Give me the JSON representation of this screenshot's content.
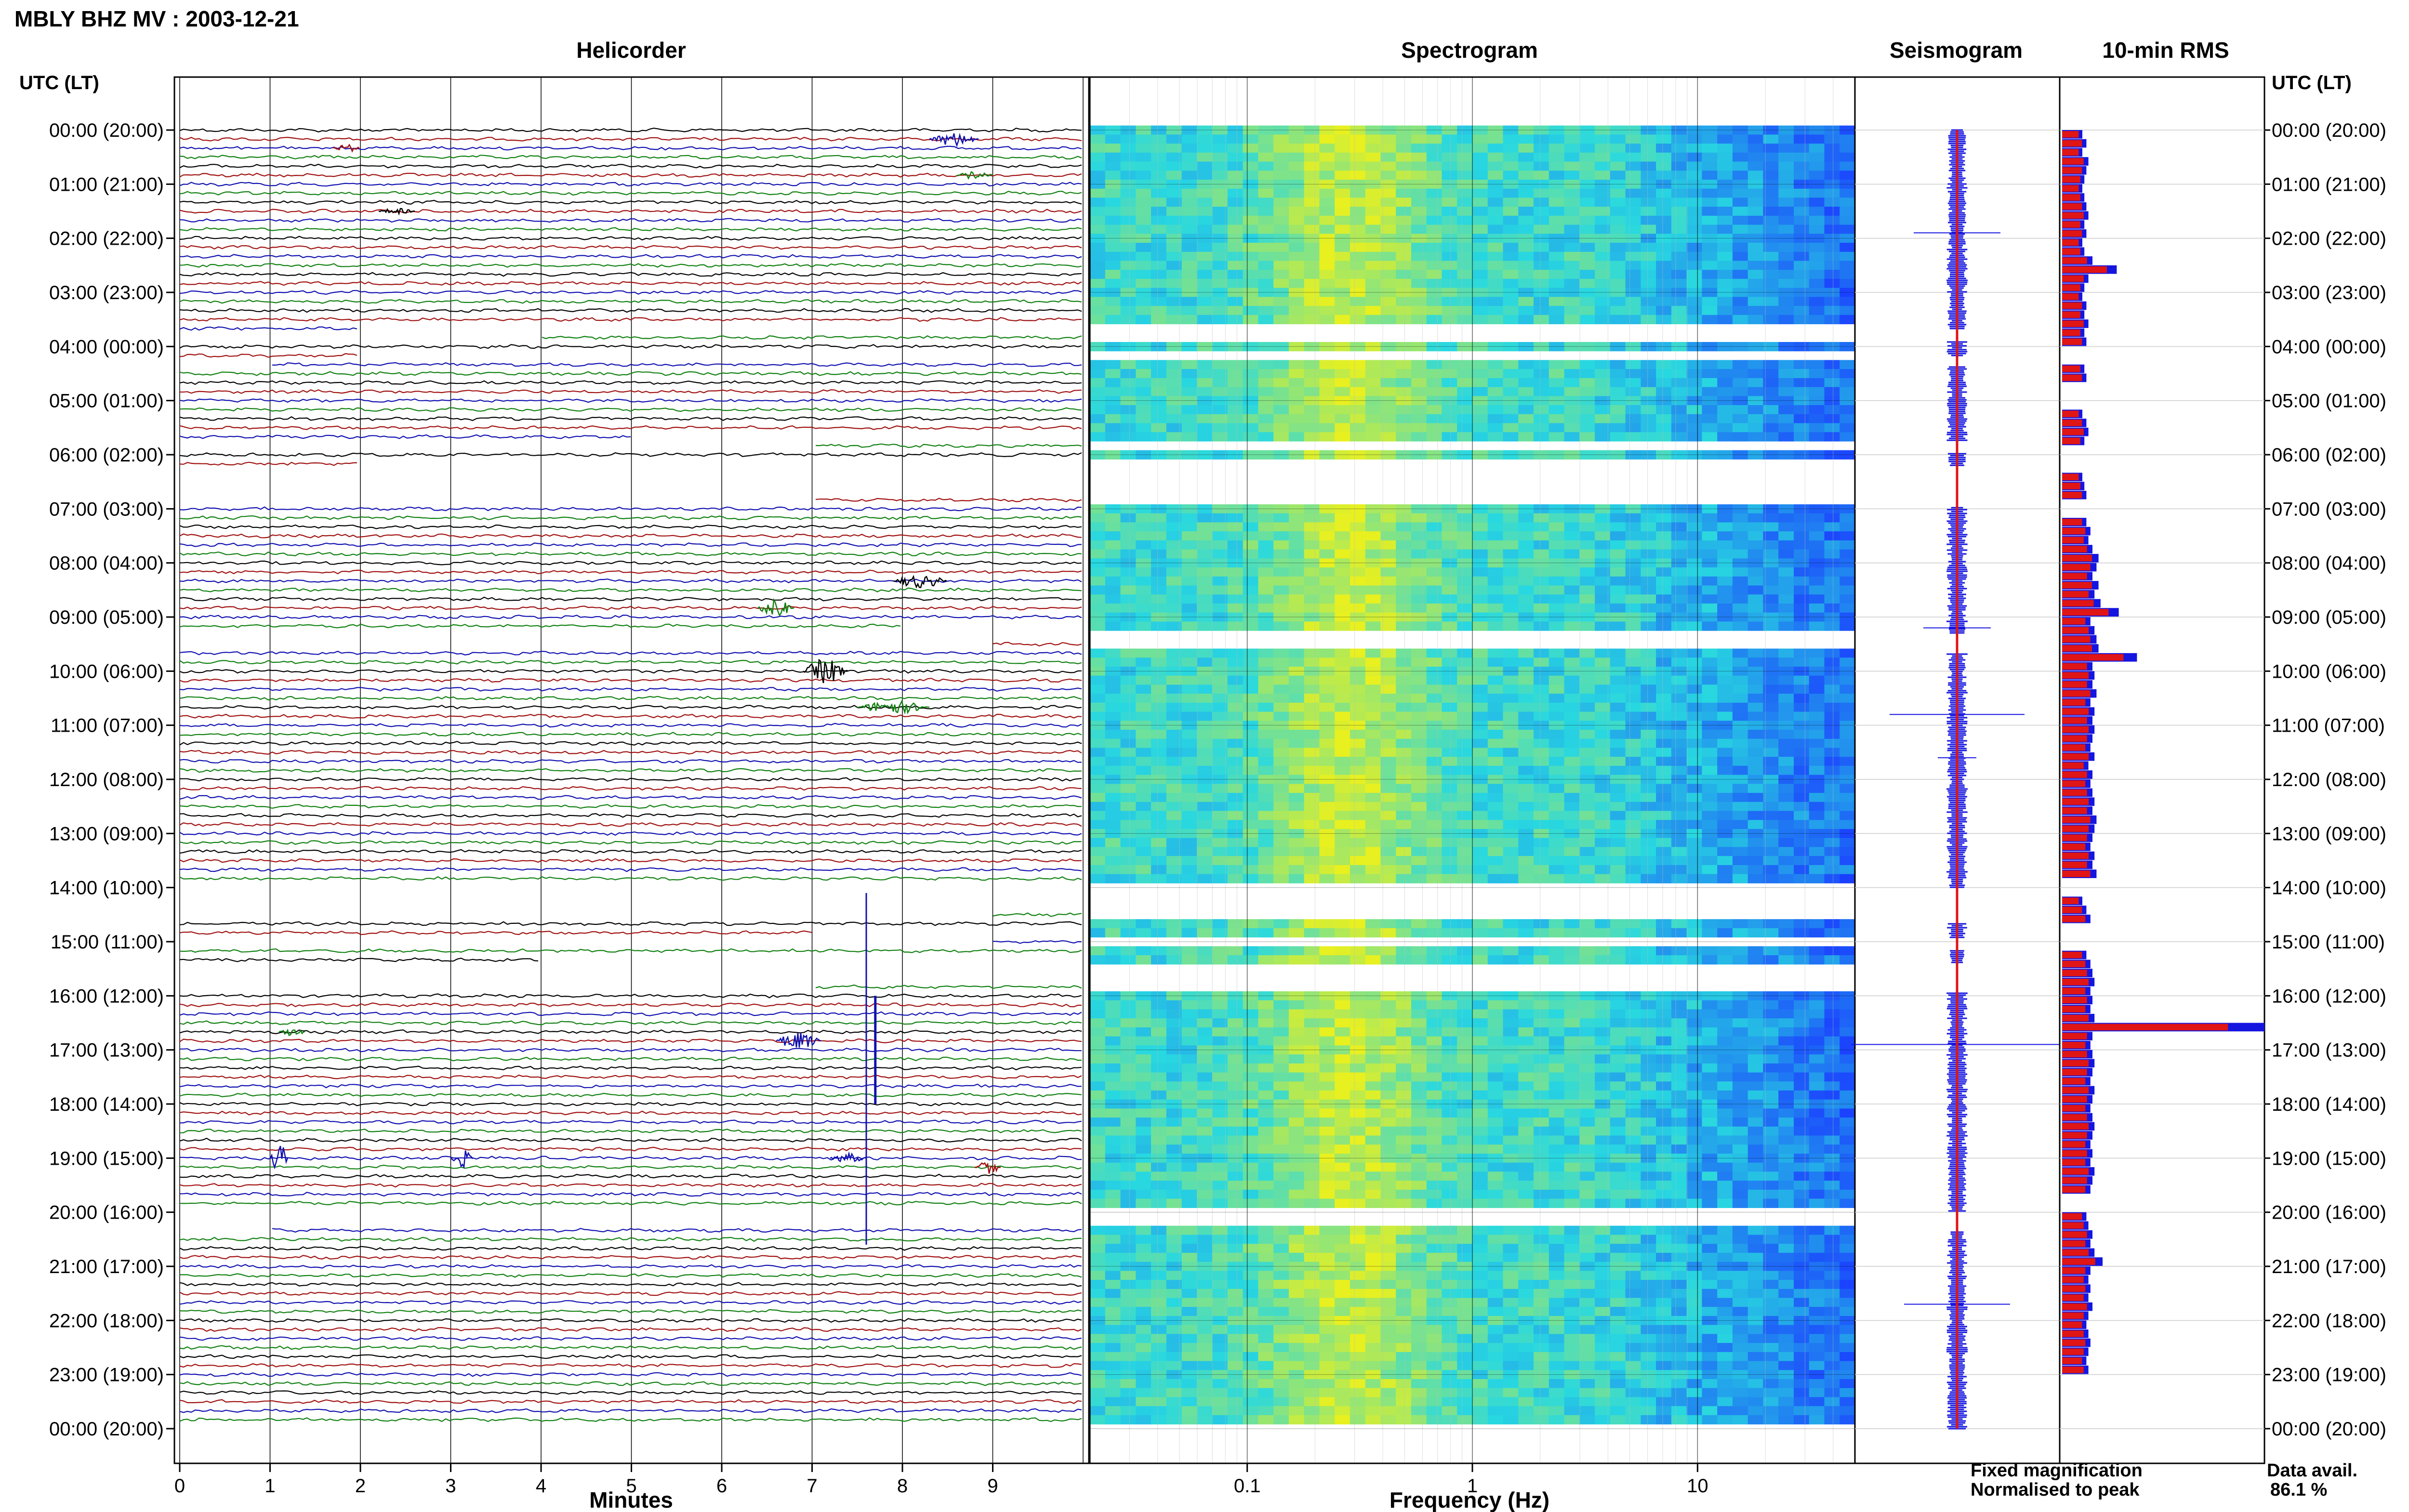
{
  "title": "MBLY BHZ MV : 2003-12-21",
  "panels": {
    "helicorder": "Helicorder",
    "spectrogram": "Spectrogram",
    "seismogram": "Seismogram",
    "rms": "10-min RMS"
  },
  "axis_left_label": "UTC (LT)",
  "axis_right_label": "UTC (LT)",
  "hour_labels": [
    "00:00 (20:00)",
    "01:00 (21:00)",
    "02:00 (22:00)",
    "03:00 (23:00)",
    "04:00 (00:00)",
    "05:00 (01:00)",
    "06:00 (02:00)",
    "07:00 (03:00)",
    "08:00 (04:00)",
    "09:00 (05:00)",
    "10:00 (06:00)",
    "11:00 (07:00)",
    "12:00 (08:00)",
    "13:00 (09:00)",
    "14:00 (10:00)",
    "15:00 (11:00)",
    "16:00 (12:00)",
    "17:00 (13:00)",
    "18:00 (14:00)",
    "19:00 (15:00)",
    "20:00 (16:00)",
    "21:00 (17:00)",
    "22:00 (18:00)",
    "23:00 (19:00)",
    "00:00 (20:00)"
  ],
  "minutes_axis": {
    "label": "Minutes",
    "ticks": [
      "0",
      "1",
      "2",
      "3",
      "4",
      "5",
      "6",
      "7",
      "8",
      "9"
    ]
  },
  "frequency_axis": {
    "label": "Frequency (Hz)",
    "ticks": [
      "0.1",
      "1",
      "10"
    ]
  },
  "legend": {
    "fixed": "Fixed magnification",
    "normalised": "Normalised to peak",
    "fixed_color": "#1515e0",
    "normalised_color": "#e01515"
  },
  "data_avail": {
    "label": "Data avail.",
    "value": "86.1 %"
  },
  "colors": {
    "trace_cycle": [
      "#000000",
      "#a01010",
      "#1010b0",
      "#108010"
    ],
    "spec_low": "#1a3cff",
    "spec_mid": "#28d8e0",
    "spec_high": "#e8f020"
  },
  "chart_data": {
    "type": "heatmap",
    "x_minutes": [
      0,
      10
    ],
    "y_hours": [
      0,
      24
    ],
    "frequency_range_hz": [
      0.02,
      50
    ],
    "frequency_scale": "log",
    "gaps_hours": [
      [
        3.7,
        3.9
      ],
      [
        4.2,
        4.35
      ],
      [
        5.75,
        5.95
      ],
      [
        6.2,
        6.95
      ],
      [
        9.3,
        9.65
      ],
      [
        14.0,
        14.65
      ],
      [
        14.95,
        15.15
      ],
      [
        15.4,
        15.95
      ],
      [
        20.0,
        20.35
      ]
    ],
    "rms_fixed": [
      1.0,
      1.2,
      1.0,
      1.3,
      1.2,
      1.1,
      1.0,
      1.1,
      1.2,
      1.3,
      1.1,
      1.2,
      1.0,
      1.1,
      1.5,
      2.7,
      1.3,
      1.1,
      1.0,
      1.2,
      1.1,
      1.3,
      1.1,
      1.2,
      0,
      0,
      1.1,
      1.2,
      0,
      0,
      0,
      1.0,
      1.2,
      1.3,
      1.1,
      0,
      0,
      0,
      1.0,
      1.1,
      1.2,
      0,
      0,
      1.2,
      1.4,
      1.3,
      1.5,
      1.8,
      1.7,
      1.5,
      1.8,
      1.6,
      1.9,
      2.8,
      1.4,
      1.6,
      1.7,
      1.8,
      3.7,
      1.5,
      1.6,
      1.5,
      1.7,
      1.4,
      1.6,
      1.5,
      1.6,
      1.5,
      1.4,
      1.6,
      1.3,
      1.5,
      1.4,
      1.5,
      1.6,
      1.5,
      1.7,
      1.6,
      1.5,
      1.4,
      1.6,
      1.5,
      1.7,
      0,
      0,
      1.0,
      1.2,
      1.4,
      0,
      0,
      0,
      1.2,
      1.4,
      1.5,
      1.6,
      1.4,
      1.5,
      1.4,
      1.6,
      10.0,
      1.5,
      1.4,
      1.5,
      1.6,
      1.5,
      1.4,
      1.6,
      1.5,
      1.4,
      1.5,
      1.6,
      1.5,
      1.4,
      1.5,
      1.4,
      1.6,
      1.5,
      1.4,
      0,
      0,
      1.2,
      1.3,
      1.5,
      1.4,
      1.6,
      2.0,
      1.4,
      1.3,
      1.4,
      1.3,
      1.5,
      1.3,
      1.2,
      1.3,
      1.4,
      1.3,
      1.2,
      1.3
    ]
  }
}
